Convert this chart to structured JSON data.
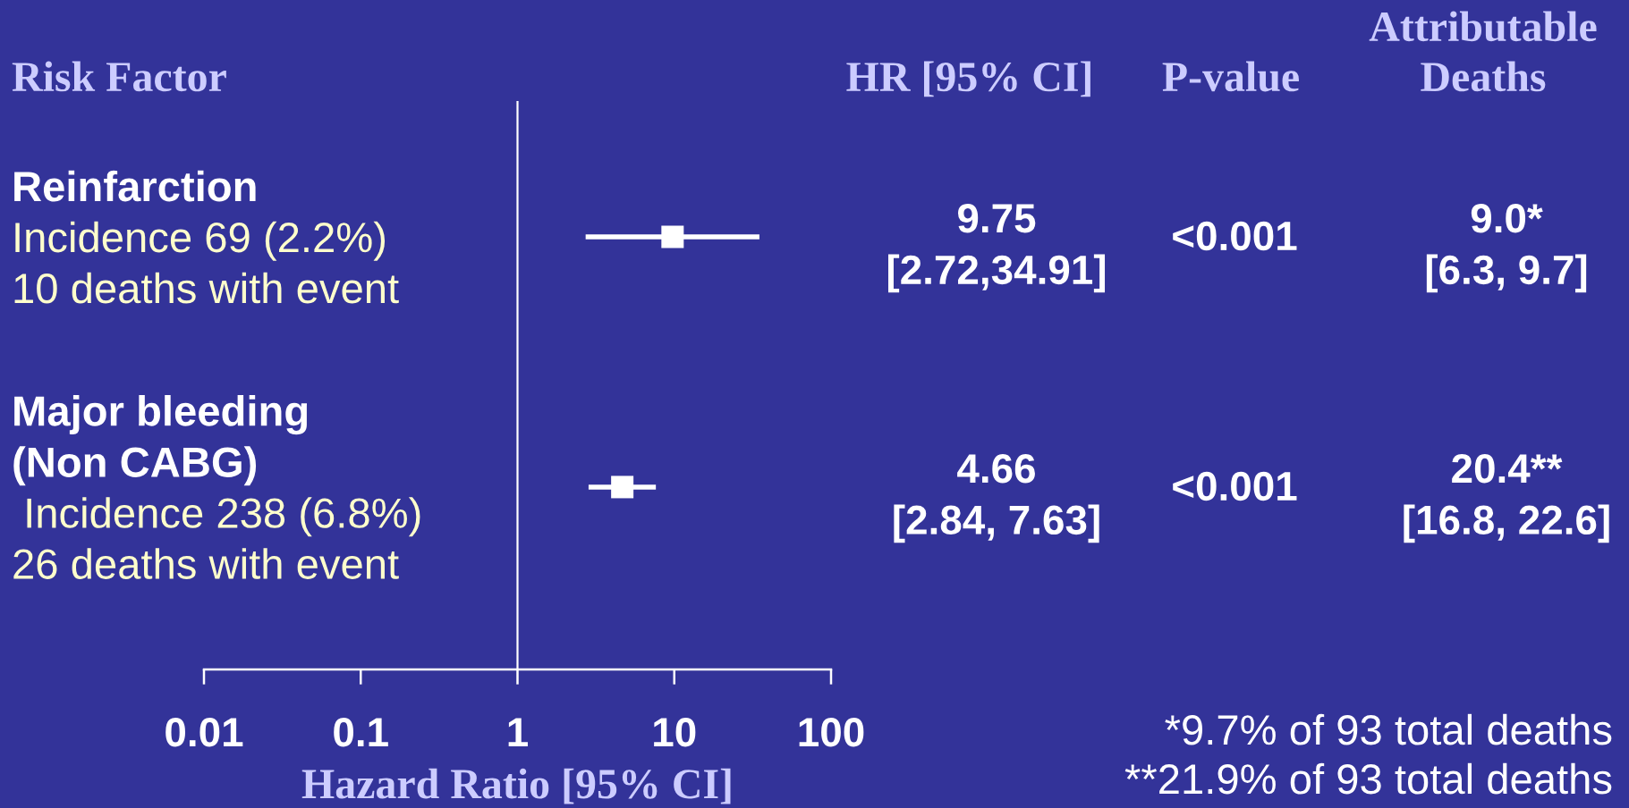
{
  "chart_data": {
    "type": "scatter",
    "orientation": "horizontal",
    "xlabel": "Hazard Ratio [95% CI]",
    "ylabel": "Risk Factor",
    "categories": [
      "Reinfarction",
      "Major bleeding\n(Non CABG)"
    ],
    "values": [
      9.75,
      4.66
    ],
    "errors": [
      [
        2.72,
        34.91
      ],
      [
        2.84,
        7.63
      ]
    ],
    "value_labels": [
      "9.75\n[2.72,34.91]",
      "4.66\n[2.84, 7.63]"
    ],
    "color": "#ffffff",
    "marker": "square",
    "log": "x",
    "xlim": [
      0.01,
      100
    ],
    "xticks": [
      0.01,
      0.1,
      1,
      10,
      100
    ],
    "ref_lines": [
      {
        "axis": "x",
        "value": 1,
        "color": "#ffffff"
      }
    ],
    "annotations": [
      "HR [95% CI]",
      "P-value",
      "Attributable\nDeaths",
      "Incidence 69 (2.2%)\n10 deaths with event",
      "<0.001",
      "9.0*\n[6.3, 9.7]",
      " Incidence 238 (6.8%)\n26 deaths with event",
      "<0.001",
      "20.4**\n[16.8, 22.6]",
      "*9.7% of 93 total deaths\n**21.9% of 93 total deaths"
    ]
  }
}
